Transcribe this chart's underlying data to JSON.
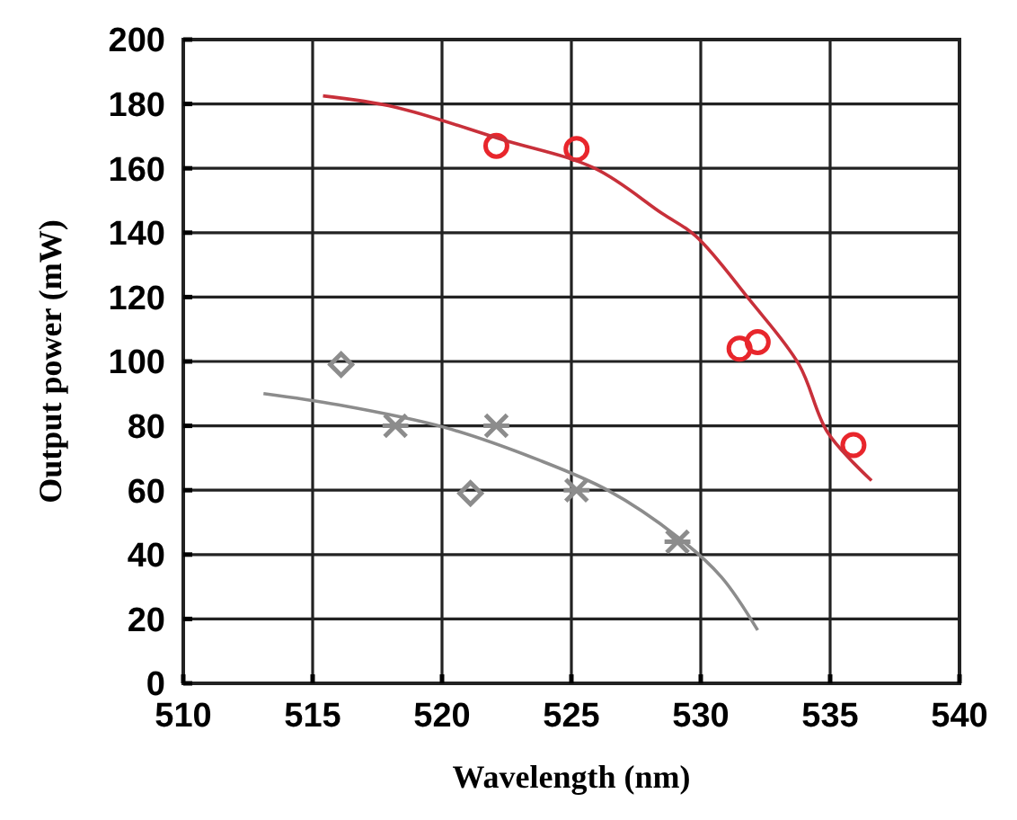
{
  "chart_data": {
    "type": "scatter",
    "xlabel": "Wavelength (nm)",
    "ylabel": "Output power (mW)",
    "xlim": [
      510,
      540
    ],
    "ylim": [
      0,
      200
    ],
    "xticks": [
      510,
      515,
      520,
      525,
      530,
      535,
      540
    ],
    "yticks": [
      0,
      20,
      40,
      60,
      80,
      100,
      120,
      140,
      160,
      180,
      200
    ],
    "grid": true,
    "series": [
      {
        "marker": "circle",
        "color": "#e8262c",
        "x": [
          522.1,
          525.2,
          531.5,
          532.2,
          535.9
        ],
        "values": [
          167,
          166,
          104,
          106,
          74
        ]
      },
      {
        "type": "line",
        "marker": "none",
        "color": "#c8303a",
        "x": [
          515.4,
          518.2,
          522.3,
          525.9,
          528.5,
          529.8,
          531.9,
          533.8,
          534.9,
          536.6
        ],
        "values": [
          182.5,
          179,
          169,
          160,
          146,
          139,
          119,
          99,
          78,
          63
        ]
      },
      {
        "marker": "diamond",
        "color": "#8c8c8c",
        "x": [
          516.1,
          521.1
        ],
        "values": [
          99,
          59
        ]
      },
      {
        "marker": "cross",
        "color": "#8c8c8c",
        "x": [
          518.2,
          522.1,
          525.2,
          529.1
        ],
        "values": [
          80,
          80,
          60,
          44
        ]
      },
      {
        "type": "line",
        "marker": "none",
        "color": "#8c8c8c",
        "x": [
          513.1,
          516,
          520.1,
          523.7,
          526.4,
          529.1,
          530.8,
          532.2
        ],
        "values": [
          90,
          86.5,
          79.5,
          69.5,
          60,
          45.5,
          33,
          16.5
        ]
      }
    ]
  }
}
